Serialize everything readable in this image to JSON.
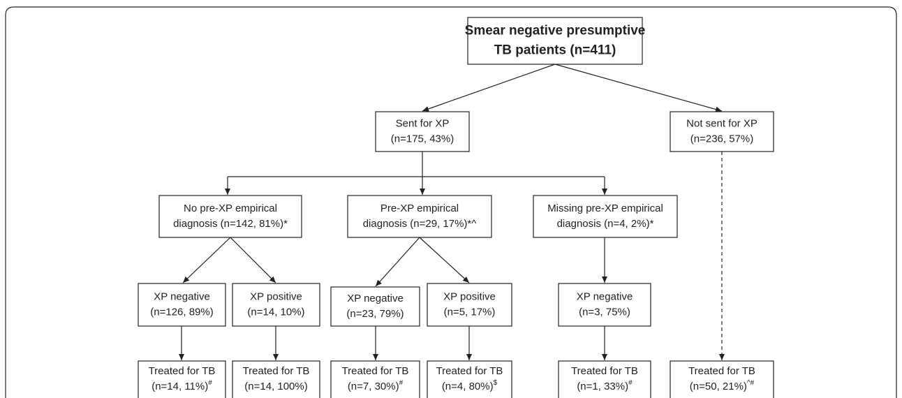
{
  "nodes": [
    {
      "lines": [
        "Smear negative presumptive",
        "TB patients (n=411)"
      ]
    },
    {
      "lines": [
        "Sent for XP",
        "(n=175, 43%)"
      ]
    },
    {
      "lines": [
        "Not sent for XP",
        "(n=236, 57%)"
      ]
    },
    {
      "lines": [
        "No pre-XP empirical",
        "diagnosis (n=142, 81%)*"
      ]
    },
    {
      "lines": [
        "Pre-XP empirical",
        "diagnosis (n=29, 17%)*^"
      ]
    },
    {
      "lines": [
        "Missing pre-XP empirical",
        "diagnosis (n=4, 2%)*"
      ]
    },
    {
      "lines": [
        "XP negative",
        "(n=126, 89%)"
      ]
    },
    {
      "lines": [
        "XP positive",
        "(n=14, 10%)"
      ]
    },
    {
      "lines": [
        "XP negative",
        "(n=23, 79%)"
      ]
    },
    {
      "lines": [
        "XP positive",
        "(n=5, 17%)"
      ]
    },
    {
      "lines": [
        "XP negative",
        "(n=3, 75%)"
      ]
    },
    {
      "lines": [
        "Treated for TB",
        "(n=14, 11%)"
      ],
      "sup": "#"
    },
    {
      "lines": [
        "Treated for TB",
        "(n=14, 100%)"
      ]
    },
    {
      "lines": [
        "Treated for TB",
        "(n=7, 30%)"
      ],
      "sup": "#"
    },
    {
      "lines": [
        "Treated for TB",
        "(n=4, 80%)"
      ],
      "sup": "$"
    },
    {
      "lines": [
        "Treated for TB",
        "(n=1, 33%)"
      ],
      "sup": "#"
    },
    {
      "lines": [
        "Treated for TB",
        "(n=50, 21%)"
      ],
      "sup": "^#"
    }
  ]
}
